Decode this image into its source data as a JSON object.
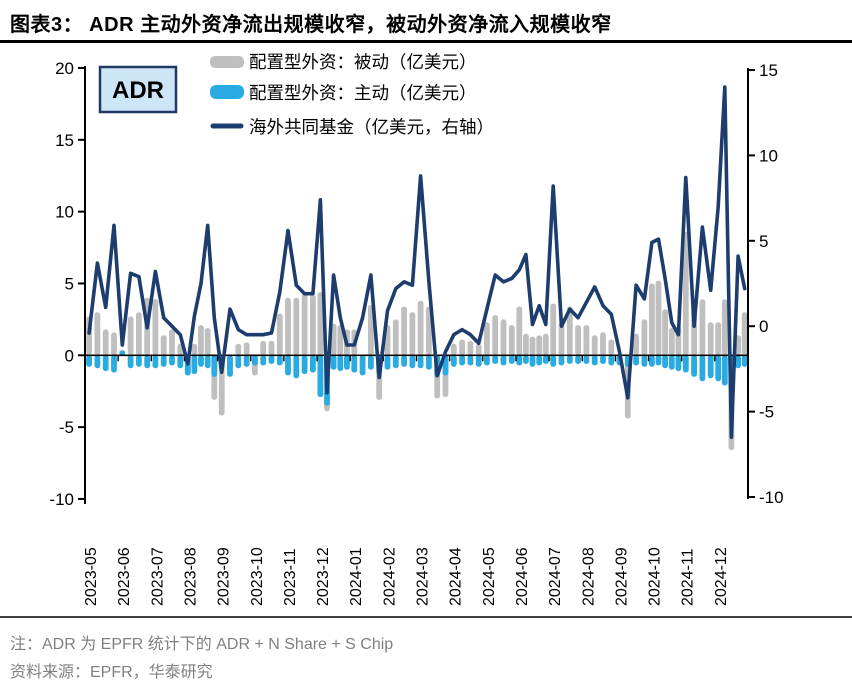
{
  "title": "图表3： ADR 主动外资净流出规模收窄，被动外资净流入规模收窄",
  "badge": "ADR",
  "legend": [
    "配置型外资：被动（亿美元）",
    "配置型外资：主动（亿美元）",
    "海外共同基金（亿美元，右轴）"
  ],
  "notes": {
    "note": "注：ADR 为 EPFR 统计下的 ADR + N Share + S Chip",
    "source": "资料来源：EPFR，华泰研究"
  },
  "colors": {
    "passive_bar": "#BFBFBF",
    "active_bar": "#29ABE2",
    "fund_line": "#1C3D6E",
    "badge_fill": "#CDE6F7",
    "badge_border": "#1F3864",
    "axis": "#000000",
    "note_text": "#808080"
  },
  "chart_data": {
    "type": "bar+line",
    "title": "ADR 外资流向（周度）",
    "left_axis": {
      "ticks": [
        20,
        15,
        10,
        5,
        0,
        -5,
        -10
      ],
      "range": [
        -10,
        20
      ]
    },
    "right_axis": {
      "ticks": [
        15,
        10,
        5,
        0,
        -5,
        -10
      ],
      "range": [
        -10,
        15
      ]
    },
    "legend_position": "top",
    "grid": false,
    "months": [
      {
        "label": "2023-05",
        "weeks": 4
      },
      {
        "label": "2023-06",
        "weeks": 4
      },
      {
        "label": "2023-07",
        "weeks": 4
      },
      {
        "label": "2023-08",
        "weeks": 5
      },
      {
        "label": "2023-09",
        "weeks": 4
      },
      {
        "label": "2023-10",
        "weeks": 4
      },
      {
        "label": "2023-11",
        "weeks": 4
      },
      {
        "label": "2023-12",
        "weeks": 5
      },
      {
        "label": "2024-01",
        "weeks": 4
      },
      {
        "label": "2024-02",
        "weeks": 4
      },
      {
        "label": "2024-03",
        "weeks": 4
      },
      {
        "label": "2024-04",
        "weeks": 4
      },
      {
        "label": "2024-05",
        "weeks": 4
      },
      {
        "label": "2024-06",
        "weeks": 5
      },
      {
        "label": "2024-07",
        "weeks": 4
      },
      {
        "label": "2024-08",
        "weeks": 4
      },
      {
        "label": "2024-09",
        "weeks": 4
      },
      {
        "label": "2024-10",
        "weeks": 5
      },
      {
        "label": "2024-11",
        "weeks": 4
      },
      {
        "label": "2024-12",
        "weeks": 5
      }
    ],
    "series": [
      {
        "name": "配置型外资：被动（亿美元）",
        "type": "bar",
        "axis": "left",
        "color": "#BFBFBF",
        "values": [
          2.7,
          3.0,
          1.8,
          1.6,
          0.4,
          2.7,
          3.0,
          4.0,
          3.9,
          1.4,
          1.8,
          0.8,
          -1.4,
          0.8,
          2.1,
          1.9,
          -3.1,
          -4.2,
          -1.0,
          0.8,
          0.9,
          -1.4,
          1.0,
          1.0,
          2.9,
          4.0,
          4.0,
          4.3,
          4.2,
          4.4,
          -3.9,
          2.2,
          2.1,
          1.8,
          1.8,
          -0.9,
          3.5,
          -3.1,
          2.1,
          2.5,
          3.4,
          3.0,
          3.8,
          3.4,
          -3.0,
          -2.9,
          0.8,
          1.1,
          1.0,
          0.8,
          2.3,
          2.8,
          2.5,
          2.1,
          3.4,
          1.5,
          1.3,
          1.4,
          1.5,
          3.6,
          2.3,
          3.4,
          2.1,
          2.1,
          1.4,
          1.6,
          1.1,
          -0.4,
          -4.4,
          1.5,
          2.5,
          5.0,
          5.2,
          3.2,
          1.9,
          2.0,
          8.6,
          3.2,
          3.9,
          2.3,
          2.3,
          3.9,
          -6.6,
          1.4,
          3.0
        ]
      },
      {
        "name": "配置型外资：主动（亿美元）",
        "type": "bar",
        "axis": "left",
        "color": "#29ABE2",
        "values": [
          -0.8,
          -0.9,
          -1.1,
          -1.2,
          0.3,
          -0.9,
          -0.8,
          -0.9,
          -0.9,
          -0.8,
          -0.7,
          -0.9,
          -1.4,
          -1.3,
          -0.8,
          -0.9,
          -1.5,
          -1.0,
          -1.5,
          -0.9,
          -0.8,
          -0.7,
          -0.7,
          -0.6,
          -0.7,
          -1.4,
          -1.6,
          -1.3,
          -1.2,
          -2.9,
          -3.5,
          -1.0,
          -1.1,
          -1.0,
          -1.2,
          -1.4,
          -1.0,
          -1.3,
          -1.0,
          -0.9,
          -0.8,
          -0.9,
          -0.9,
          -1.0,
          -1.5,
          -1.4,
          -0.8,
          -0.7,
          -0.7,
          -0.8,
          -0.7,
          -0.6,
          -0.7,
          -0.6,
          -0.7,
          -0.6,
          -0.8,
          -0.7,
          -0.6,
          -0.8,
          -0.7,
          -0.6,
          -0.6,
          -0.6,
          -0.7,
          -0.6,
          -0.7,
          -0.7,
          -0.8,
          -0.7,
          -0.8,
          -0.8,
          -0.7,
          -0.9,
          -1.0,
          -1.1,
          -1.2,
          -1.5,
          -1.8,
          -1.6,
          -1.8,
          -2.1,
          -2.3,
          -0.9,
          -0.8
        ]
      },
      {
        "name": "海外共同基金（亿美元，右轴）",
        "type": "line",
        "axis": "right",
        "color": "#1C3D6E",
        "values": [
          -0.4,
          3.7,
          1.1,
          5.9,
          -1.1,
          3.1,
          2.9,
          -0.1,
          3.2,
          0.5,
          0.0,
          -0.5,
          -2.2,
          0.6,
          2.5,
          5.9,
          0.5,
          -2.7,
          1.0,
          -0.2,
          -0.5,
          -0.5,
          -0.5,
          -0.4,
          2.0,
          5.6,
          2.4,
          1.9,
          1.9,
          7.4,
          -3.9,
          3.0,
          0.5,
          -1.1,
          -1.1,
          0.5,
          3.0,
          -3.0,
          0.9,
          2.2,
          2.6,
          2.4,
          8.8,
          2.6,
          -2.9,
          -1.5,
          -0.5,
          -0.2,
          -0.5,
          -1.0,
          1.0,
          3.0,
          2.6,
          2.8,
          3.3,
          4.2,
          0.1,
          1.2,
          0.1,
          8.2,
          0.0,
          1.0,
          0.5,
          1.4,
          2.3,
          1.2,
          0.7,
          -1.5,
          -4.2,
          2.4,
          1.6,
          4.9,
          5.1,
          2.8,
          0.2,
          -0.5,
          8.7,
          0.0,
          5.8,
          2.1,
          7.0,
          14.0,
          -6.5,
          4.1,
          2.2
        ]
      }
    ]
  }
}
